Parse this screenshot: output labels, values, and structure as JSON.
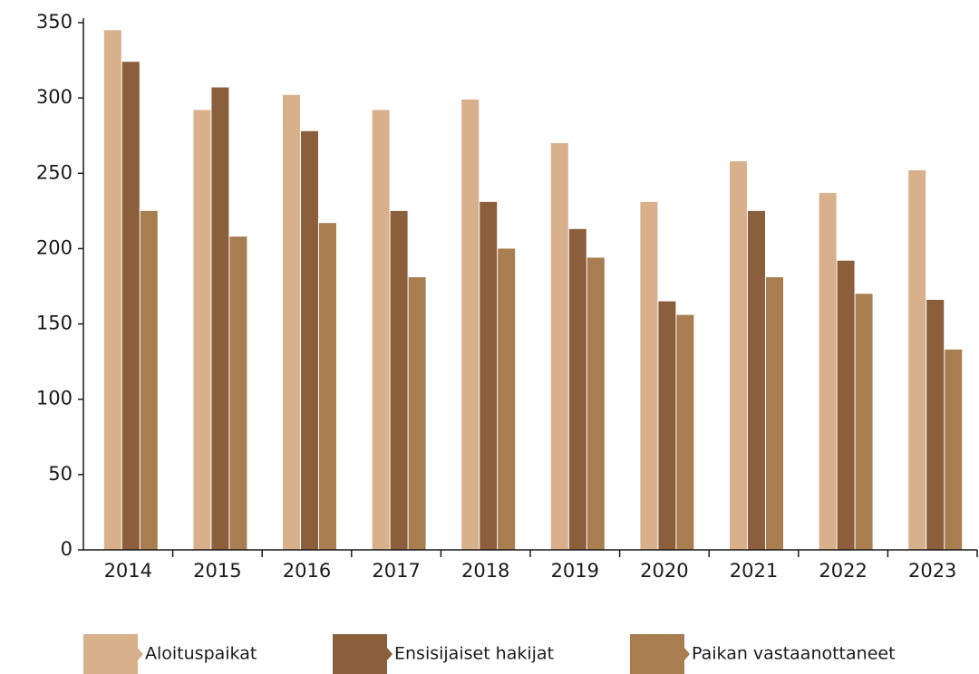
{
  "chart_data": {
    "type": "bar",
    "categories": [
      "2014",
      "2015",
      "2016",
      "2017",
      "2018",
      "2019",
      "2020",
      "2021",
      "2022",
      "2023"
    ],
    "series": [
      {
        "name": "Aloituspaikat",
        "color": "#d8b08c",
        "values": [
          345,
          292,
          302,
          292,
          299,
          270,
          231,
          258,
          237,
          252
        ]
      },
      {
        "name": "Ensisijaiset hakijat",
        "color": "#8b5e3c",
        "values": [
          324,
          307,
          278,
          225,
          231,
          213,
          165,
          225,
          192,
          166
        ]
      },
      {
        "name": "Paikan vastaanottaneet",
        "color": "#a87d50",
        "values": [
          225,
          208,
          217,
          181,
          200,
          194,
          156,
          181,
          170,
          133
        ]
      }
    ],
    "ylim": [
      0,
      350
    ],
    "yticks": [
      0,
      50,
      100,
      150,
      200,
      250,
      300,
      350
    ],
    "grid": false,
    "legend": "bottom"
  }
}
